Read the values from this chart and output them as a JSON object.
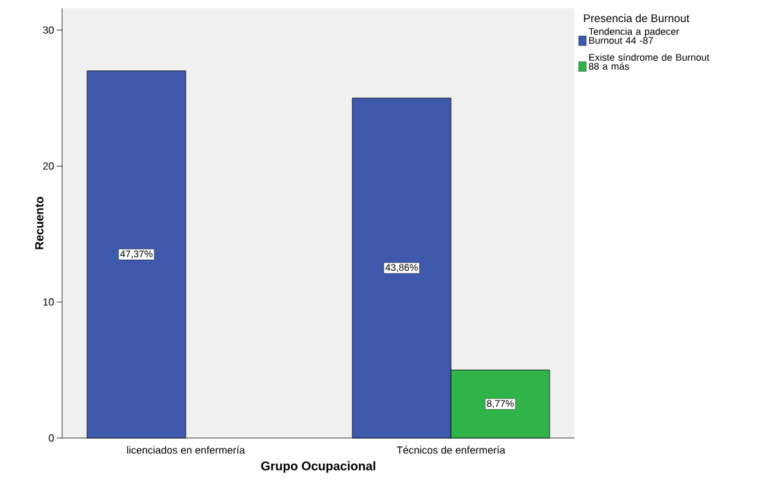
{
  "chart_data": {
    "type": "bar",
    "xlabel": "Grupo Ocupacional",
    "ylabel": "Recuento",
    "legend_title": "Presencia de Burnout",
    "categories": [
      "licenciados en enfermería",
      "Técnicos de enfermería"
    ],
    "series": [
      {
        "name": "Tendencia a padecer Burnout 44 -87",
        "color": "#3e58ac",
        "values": [
          27,
          25
        ]
      },
      {
        "name": "Existe síndrome de Burnout 88 a más",
        "color": "#30b44a",
        "values": [
          null,
          5
        ]
      }
    ],
    "annotations": [
      "47,37%",
      "43,86%",
      "8,77%"
    ],
    "ylim": [
      0,
      31.6
    ],
    "yticks": [
      0,
      10,
      20,
      30
    ],
    "legend": "top right"
  }
}
